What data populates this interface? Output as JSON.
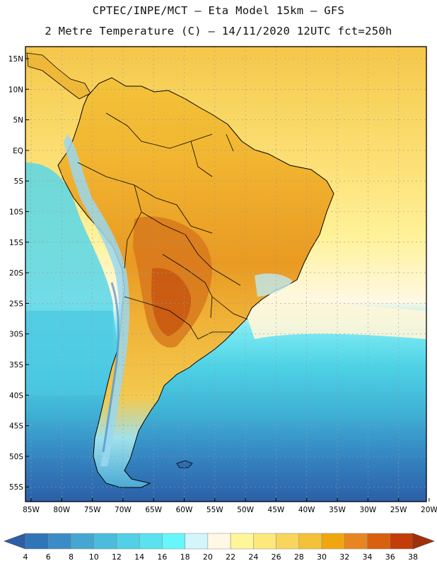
{
  "header": {
    "line1": "CPTEC/INPE/MCT –  Eta Model 15km – GFS",
    "line2": "2 Metre Temperature (C) – 14/11/2020 12UTC fct=250h"
  },
  "axes": {
    "lat_labels": [
      "15N",
      "10N",
      "5N",
      "EQ",
      "5S",
      "10S",
      "15S",
      "20S",
      "25S",
      "30S",
      "35S",
      "40S",
      "45S",
      "50S",
      "55S"
    ],
    "lon_labels": [
      "85W",
      "80W",
      "75W",
      "70W",
      "65W",
      "60W",
      "55W",
      "50W",
      "45W",
      "40W",
      "35W",
      "30W",
      "25W",
      "20W"
    ]
  },
  "colorbar": {
    "tick_labels": [
      "4",
      "6",
      "8",
      "10",
      "12",
      "14",
      "16",
      "18",
      "20",
      "22",
      "24",
      "26",
      "28",
      "30",
      "32",
      "34",
      "36",
      "38"
    ],
    "colors": [
      "#2b5fa8",
      "#2f76b8",
      "#3a8cc6",
      "#45a6d2",
      "#4cbcdd",
      "#52d0e6",
      "#5ae2ee",
      "#66f6fb",
      "#d2f6fb",
      "#fff8e4",
      "#fff599",
      "#fde87c",
      "#f8d65c",
      "#f3c238",
      "#f0a70f",
      "#e98521",
      "#d9600f",
      "#c23d09",
      "#a0300a"
    ]
  }
}
